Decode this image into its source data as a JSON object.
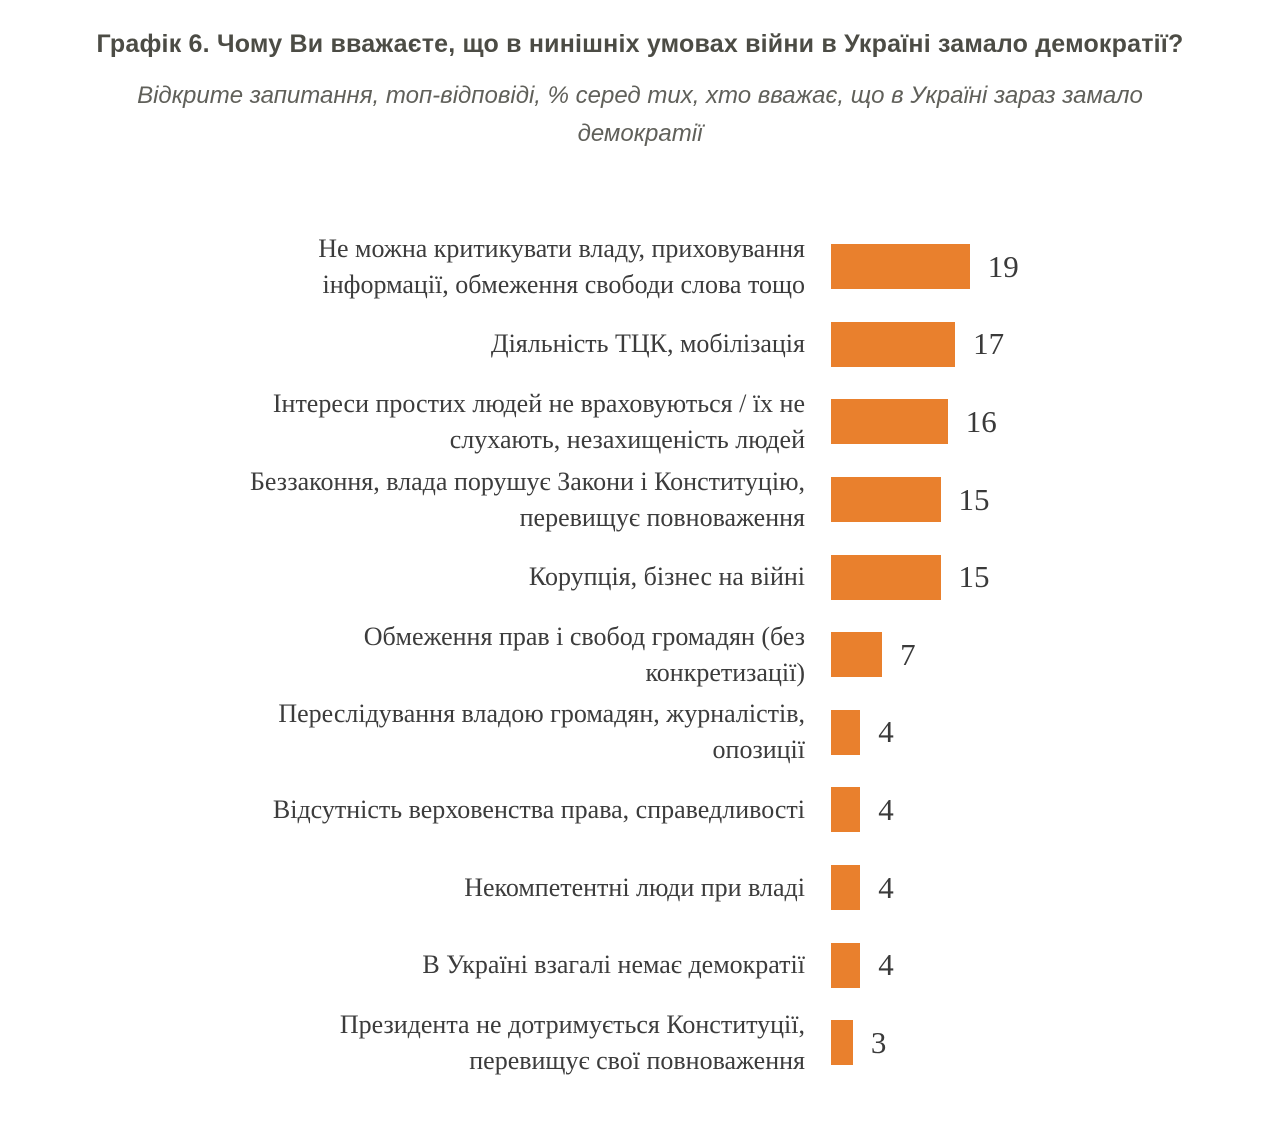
{
  "title": "Графік 6. Чому Ви вважаєте, що в нинішніх умовах війни в Україні замало демократії?",
  "subtitle": "Відкрите запитання, топ-відповіді, % серед тих, хто вважає, що в Україні зараз замало\nдемократії",
  "colors": {
    "bar": "#e9802d",
    "title_text": "#4c4c45",
    "subtitle_text": "#60605a",
    "label_text": "#3c3c3c",
    "value_text": "#3a3a3a"
  },
  "chart_data": {
    "type": "bar",
    "orientation": "horizontal",
    "value_unit": "%",
    "xlim": [
      0,
      20
    ],
    "grid": false,
    "legend": false,
    "title": "Графік 6. Чому Ви вважаєте, що в нинішніх умовах війни в Україні замало демократії?",
    "subtitle": "Відкрите запитання, топ-відповіді, % серед тих, хто вважає, що в Україні зараз замало демократії",
    "categories": [
      "Не можна критикувати владу, приховування інформації, обмеження свободи слова тощо",
      "Діяльність ТЦК, мобілізація",
      "Інтереси простих людей не враховуються / їх не слухають, незахищеність людей",
      "Беззаконня, влада порушує Закони і Конституцію, перевищує повноваження",
      "Корупція, бізнес на війні",
      "Обмеження прав і свобод громадян (без конкретизації)",
      "Переслідування владою громадян, журналістів, опозиції",
      "Відсутність верховенства права, справедливості",
      "Некомпетентні люди при владі",
      "В Україні взагалі немає демократії",
      "Президента не дотримується Конституції, перевищує свої повноваження"
    ],
    "values": [
      19,
      17,
      16,
      15,
      15,
      7,
      4,
      4,
      4,
      4,
      3
    ],
    "rows": [
      {
        "label_lines": [
          "Не можна критикувати владу, приховування",
          "інформації, обмеження свободи слова тощо"
        ],
        "value": 19
      },
      {
        "label_lines": [
          "Діяльність ТЦК, мобілізація"
        ],
        "value": 17
      },
      {
        "label_lines": [
          "Інтереси простих людей не враховуються / їх не",
          "слухають, незахищеність людей"
        ],
        "value": 16
      },
      {
        "label_lines": [
          "Беззаконня, влада порушує Закони і Конституцію,",
          "перевищує повноваження"
        ],
        "value": 15
      },
      {
        "label_lines": [
          "Корупція, бізнес на війні"
        ],
        "value": 15
      },
      {
        "label_lines": [
          "Обмеження прав і свобод громадян (без",
          "конкретизації)"
        ],
        "value": 7
      },
      {
        "label_lines": [
          "Переслідування владою громадян, журналістів,",
          "опозиції"
        ],
        "value": 4
      },
      {
        "label_lines": [
          "Відсутність верховенства права, справедливості"
        ],
        "value": 4
      },
      {
        "label_lines": [
          "Некомпетентні люди при владі"
        ],
        "value": 4
      },
      {
        "label_lines": [
          "В Україні взагалі немає демократії"
        ],
        "value": 4
      },
      {
        "label_lines": [
          "Президента не дотримується Конституції,",
          "перевищує свої повноваження"
        ],
        "value": 3
      }
    ]
  }
}
